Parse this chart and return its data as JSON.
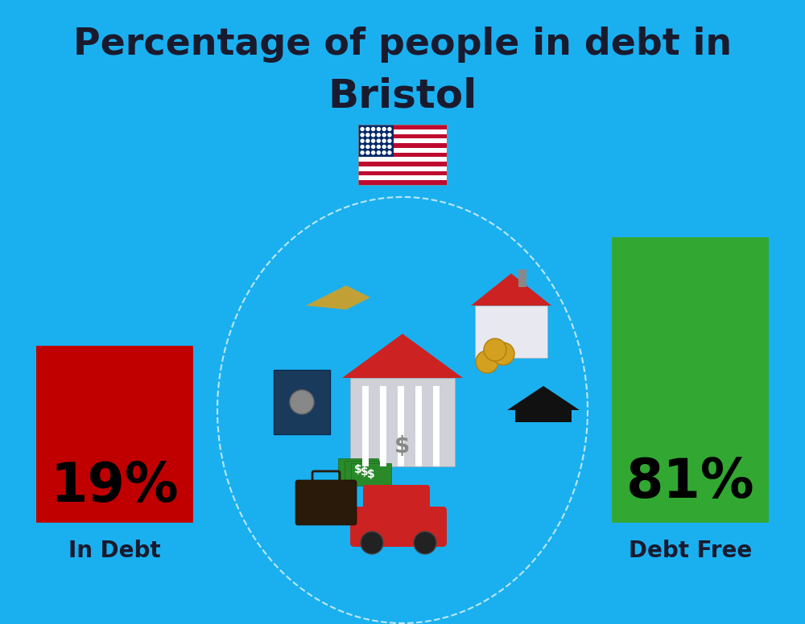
{
  "title_line1": "Percentage of people in debt in",
  "title_line2": "Bristol",
  "background_color": "#1AB0F0",
  "bar_left_label": "In Debt",
  "bar_right_label": "Debt Free",
  "bar_left_color": "#C00000",
  "bar_right_color": "#32A832",
  "bar_left_pct": "19%",
  "bar_right_pct": "81%",
  "title_color": "#1A1A2E",
  "label_color": "#1A1A2E",
  "pct_color": "#000000",
  "title_fontsize": 33,
  "subtitle_fontsize": 36,
  "pct_fontsize": 48,
  "label_fontsize": 20
}
